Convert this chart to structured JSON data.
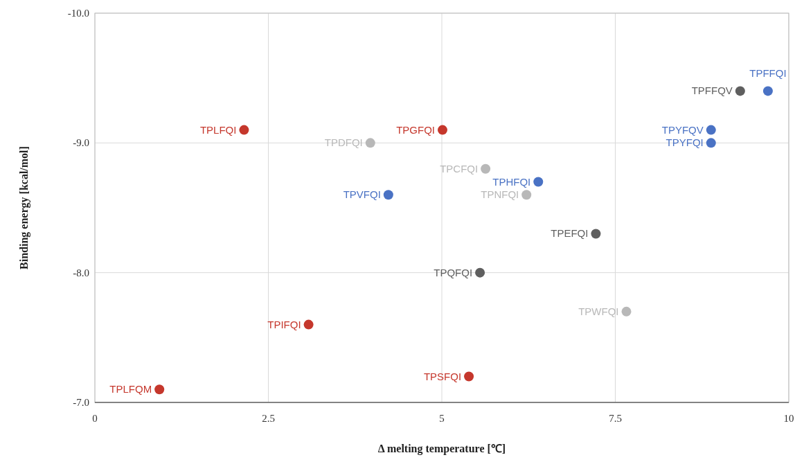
{
  "chart_data": {
    "type": "scatter",
    "xlabel": "Δ melting temperature [℃]",
    "ylabel": "Binding energy [kcal/mol]",
    "xlim": [
      0,
      10
    ],
    "xticks": [
      0,
      2.5,
      5,
      7.5,
      10
    ],
    "ylim": [
      -7,
      -10
    ],
    "yticks": [
      {
        "value": -7,
        "label": "-7.0"
      },
      {
        "value": -8,
        "label": "-8.0"
      },
      {
        "value": -9,
        "label": "-9.0"
      },
      {
        "value": -10,
        "label": "-10.0"
      }
    ],
    "grid": true,
    "marker": "circle",
    "series": [
      {
        "color": "#c5372c",
        "x": [
          0.93,
          2.15,
          3.08,
          5.39,
          5.01
        ],
        "values": [
          -7.1,
          -9.1,
          -7.6,
          -7.2,
          -9.1
        ]
      },
      {
        "color": "#4a72c4",
        "x": [
          4.23,
          6.39,
          9.7,
          8.88,
          8.88
        ],
        "values": [
          -8.6,
          -8.7,
          -9.4,
          -9.1,
          -9.0
        ]
      },
      {
        "color": "#5f5f5f",
        "x": [
          5.55,
          7.22,
          9.3
        ],
        "values": [
          -8.0,
          -8.3,
          -9.4
        ]
      },
      {
        "color": "#b8b8b8",
        "x": [
          3.97,
          5.63,
          6.22,
          7.66
        ],
        "values": [
          -9.0,
          -8.8,
          -8.6,
          -7.7
        ]
      }
    ],
    "annotations": [
      {
        "text": "TPLFQM",
        "x": 0.93,
        "y": -7.1
      },
      {
        "text": "TPLFQI",
        "x": 2.15,
        "y": -9.1
      },
      {
        "text": "TPIFQI",
        "x": 3.08,
        "y": -7.6
      },
      {
        "text": "TPSFQI",
        "x": 5.39,
        "y": -7.2
      },
      {
        "text": "TPGFQI",
        "x": 5.01,
        "y": -9.1
      },
      {
        "text": "TPVFQI",
        "x": 4.23,
        "y": -8.6
      },
      {
        "text": "TPHFQI",
        "x": 6.39,
        "y": -8.7
      },
      {
        "text": "TPFFQI",
        "x": 9.7,
        "y": -9.4
      },
      {
        "text": "TPYFQV",
        "x": 8.88,
        "y": -9.1
      },
      {
        "text": "TPYFQI",
        "x": 8.88,
        "y": -9.0
      },
      {
        "text": "TPQFQI",
        "x": 5.55,
        "y": -8.0
      },
      {
        "text": "TPEFQI",
        "x": 7.22,
        "y": -8.3
      },
      {
        "text": "TPFFQV",
        "x": 9.3,
        "y": -9.4
      },
      {
        "text": "TPDFQI",
        "x": 3.97,
        "y": -9.0
      },
      {
        "text": "TPCFQI",
        "x": 5.63,
        "y": -8.8
      },
      {
        "text": "TPNFQI",
        "x": 6.22,
        "y": -8.6
      },
      {
        "text": "TPWFQI",
        "x": 7.66,
        "y": -7.7
      }
    ]
  }
}
